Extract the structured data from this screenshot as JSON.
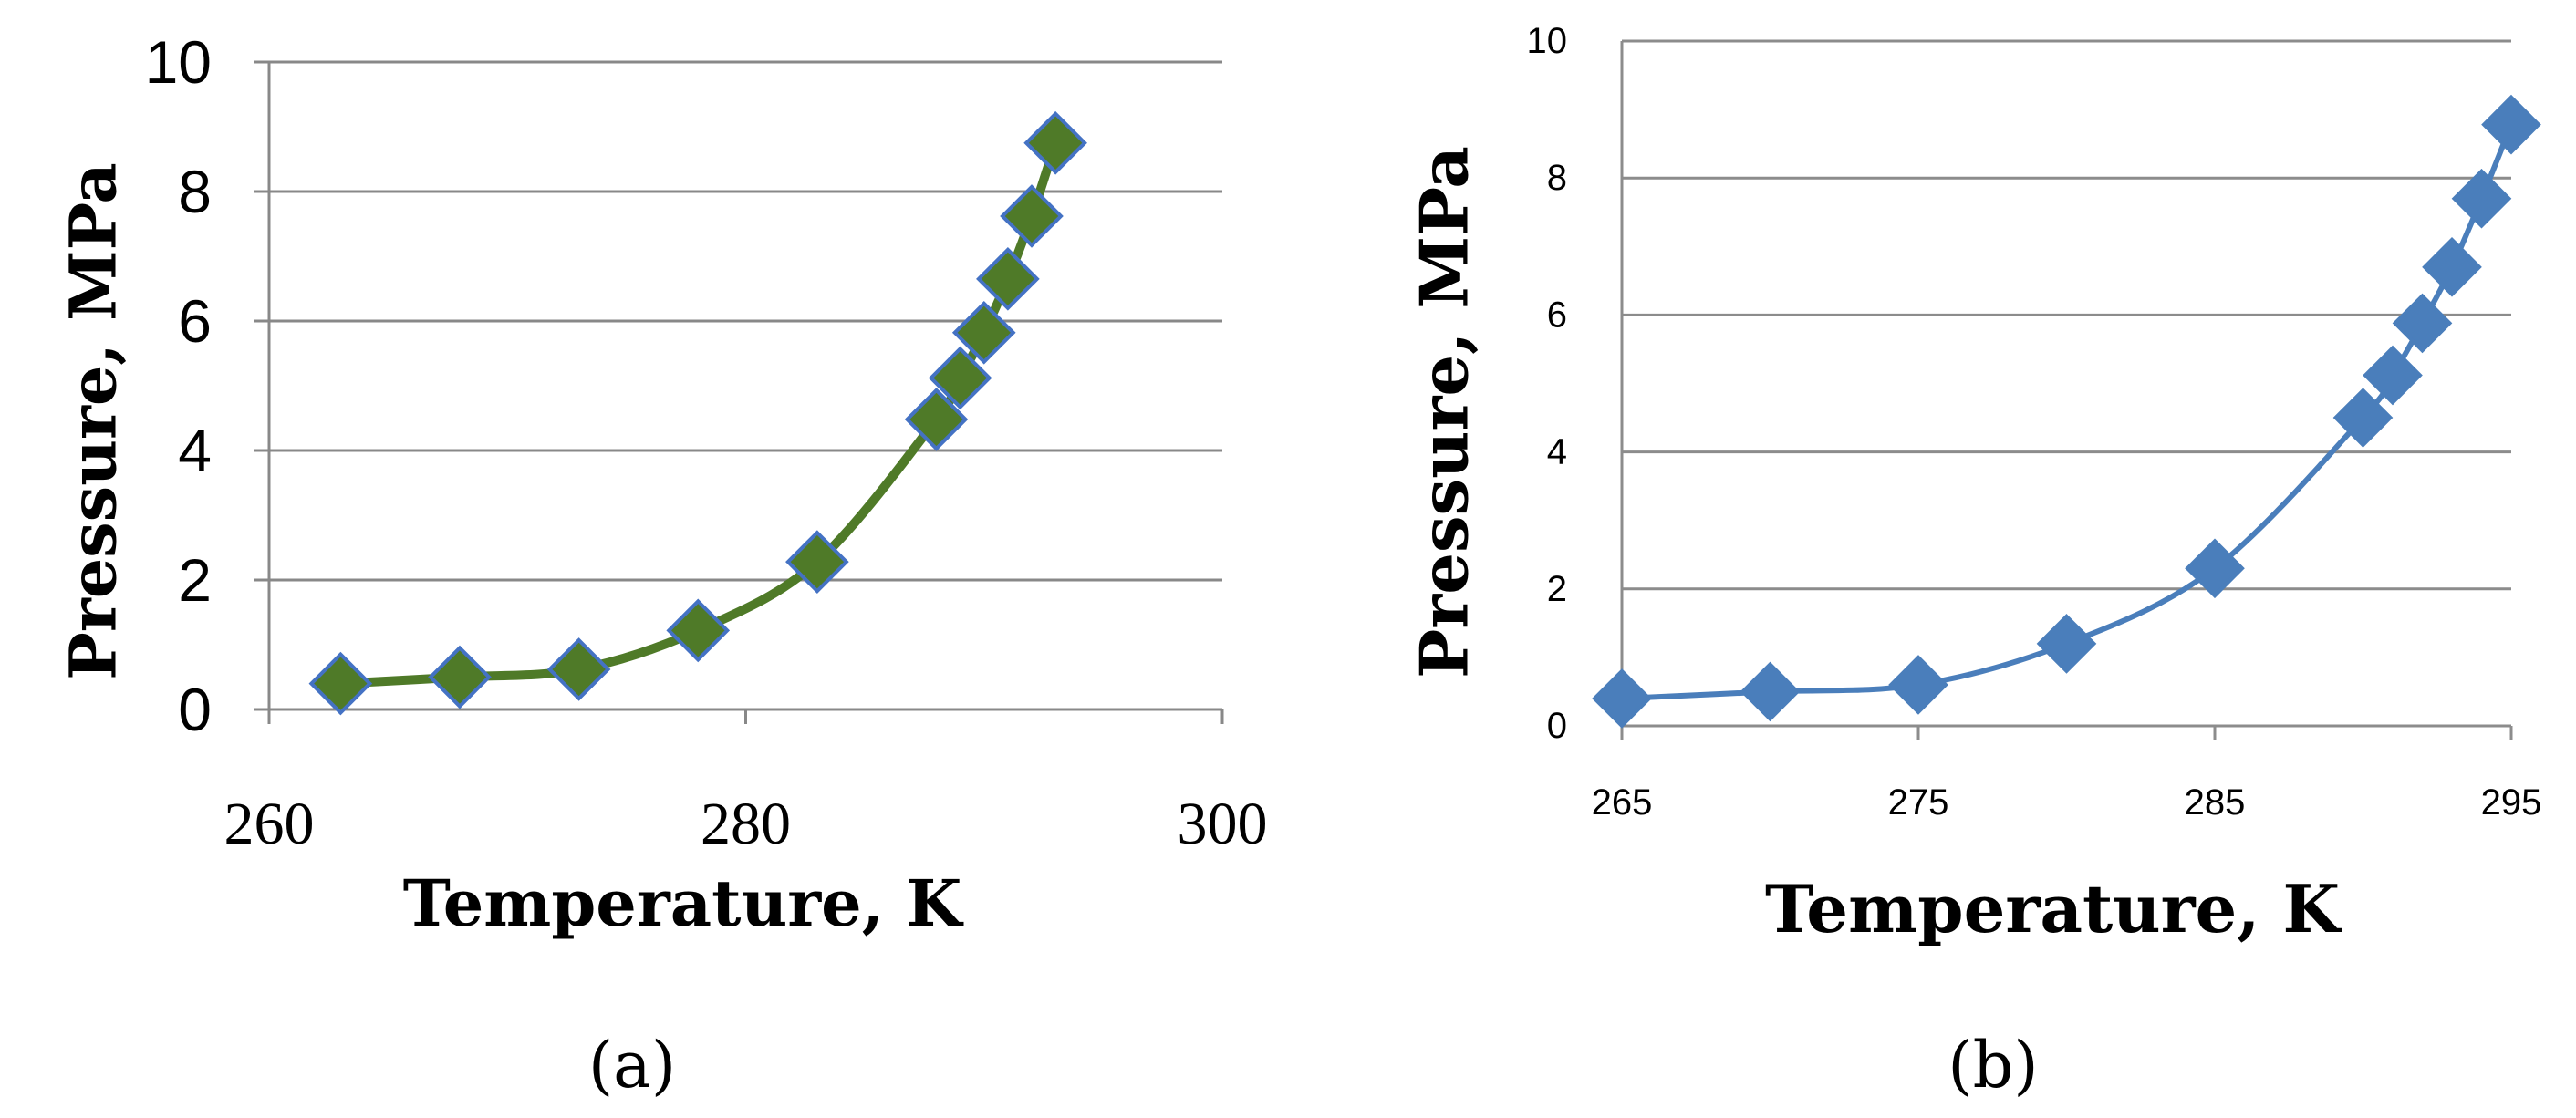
{
  "chart_data": [
    {
      "type": "line",
      "panel_label": "(a)",
      "xlabel": "Temperature, K",
      "ylabel": "Pressure, MPa",
      "xlim": [
        260,
        300
      ],
      "ylim": [
        0,
        10
      ],
      "x_ticks": [
        260,
        280,
        300
      ],
      "y_ticks": [
        0,
        2,
        4,
        6,
        8,
        10
      ],
      "grid": "horizontal",
      "series": [
        {
          "color": "#4f7a28",
          "marker_color": "#4f7a28",
          "marker_edge": "#4472c4",
          "x": [
            263,
            268,
            273,
            278,
            283,
            288,
            289,
            290,
            291,
            292,
            293
          ],
          "y": [
            0.4,
            0.5,
            0.62,
            1.22,
            2.28,
            4.48,
            5.12,
            5.82,
            6.65,
            7.62,
            8.75
          ]
        }
      ]
    },
    {
      "type": "line",
      "panel_label": "(b)",
      "xlabel": "Temperature, K",
      "ylabel": "Pressure, MPa",
      "xlim": [
        265,
        295
      ],
      "ylim": [
        0,
        10
      ],
      "x_ticks": [
        265,
        275,
        285,
        295
      ],
      "y_ticks": [
        0,
        2,
        4,
        6,
        8,
        10
      ],
      "grid": "horizontal",
      "series": [
        {
          "color": "#4a7ebb",
          "marker_color": "#4a7ebb",
          "marker_edge": "#4a7ebb",
          "x": [
            265,
            270,
            275,
            280,
            285,
            290,
            291,
            292,
            293,
            294,
            295
          ],
          "y": [
            0.4,
            0.5,
            0.6,
            1.2,
            2.3,
            4.5,
            5.12,
            5.88,
            6.7,
            7.7,
            8.78
          ]
        }
      ]
    }
  ]
}
